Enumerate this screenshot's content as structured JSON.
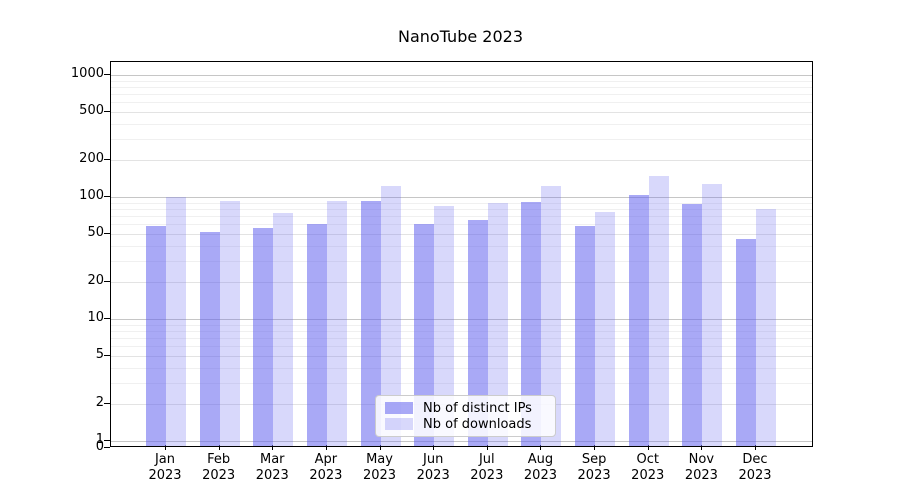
{
  "title": "NanoTube 2023",
  "chart_data": {
    "type": "bar",
    "title": "NanoTube 2023",
    "yscale": "symlog",
    "ylim": [
      0,
      1280
    ],
    "grid": true,
    "legend_position": "lower center",
    "y_ticks": [
      1000,
      500,
      200,
      100,
      50,
      20,
      10,
      5,
      2,
      1,
      0
    ],
    "categories": [
      "Jan 2023",
      "Feb 2023",
      "Mar 2023",
      "Apr 2023",
      "May 2023",
      "Jun 2023",
      "Jul 2023",
      "Aug 2023",
      "Sep 2023",
      "Oct 2023",
      "Nov 2023",
      "Dec 2023"
    ],
    "series": [
      {
        "name": "Nb of distinct IPs",
        "color": "#6363ef",
        "opacity": 0.55,
        "values": [
          58,
          52,
          56,
          60,
          92,
          60,
          65,
          91,
          58,
          104,
          87,
          45
        ]
      },
      {
        "name": "Nb of downloads",
        "color": "#6363ef",
        "opacity": 0.25,
        "values": [
          100,
          93,
          74,
          92,
          122,
          85,
          89,
          122,
          75,
          150,
          127,
          80
        ]
      }
    ]
  },
  "colors": {
    "axis": "#000000",
    "grid_major": "#c6c6c6",
    "grid_labeled": "#e3e3e3",
    "grid_minor": "#f0f0f0",
    "bar_base": "#6363ef"
  }
}
